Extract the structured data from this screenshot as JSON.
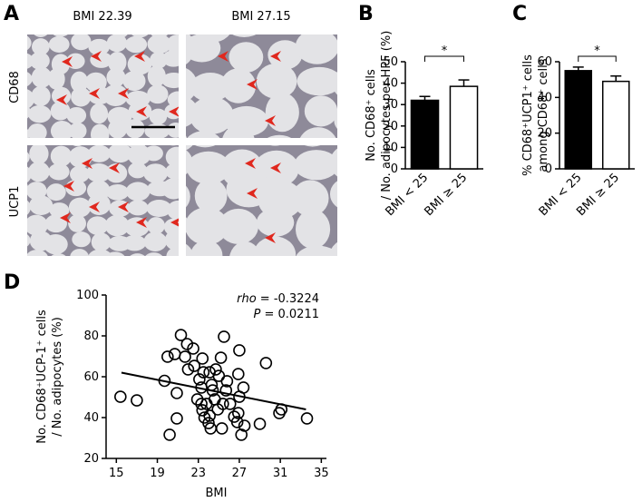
{
  "panel_a": {
    "letter": "A",
    "columns": [
      "BMI 22.39",
      "BMI 27.15"
    ],
    "rows": [
      "CD68",
      "UCP1"
    ]
  },
  "chart_data": [
    {
      "type": "bar",
      "letter": "B",
      "ylabel": [
        "No. CD68⁺ cells",
        "/ No. adipocytes per HPF (%)"
      ],
      "categories": [
        "BMI < 25",
        "BMI ≥ 25"
      ],
      "values": [
        32,
        38.5
      ],
      "errors": [
        1.8,
        3
      ],
      "colors": [
        "#000000",
        "#ffffff"
      ],
      "ylim": [
        0,
        50
      ],
      "yticks": [
        0,
        10,
        20,
        30,
        40,
        50
      ],
      "significance": "*"
    },
    {
      "type": "bar",
      "letter": "C",
      "ylabel": [
        "% CD68⁺UCP1⁺ cells",
        "among CD68⁺ cells"
      ],
      "categories": [
        "BMI < 25",
        "BMI ≥ 25"
      ],
      "values": [
        55,
        49
      ],
      "errors": [
        2,
        3
      ],
      "colors": [
        "#000000",
        "#ffffff"
      ],
      "ylim": [
        0,
        60
      ],
      "yticks": [
        0,
        20,
        40,
        60
      ],
      "significance": "*"
    },
    {
      "type": "scatter",
      "letter": "D",
      "ylabel": [
        "No. CD68⁺UCP-1⁺ cells",
        "/ No. adipocytes (%)"
      ],
      "xlabel": "BMI",
      "annotations": [
        {
          "label": "rho",
          "text": "= -0.3224"
        },
        {
          "label": "P",
          "text": "= 0.0211"
        }
      ],
      "x": [
        15.4,
        17.0,
        19.7,
        20.0,
        20.7,
        20.9,
        20.2,
        20.9,
        21.3,
        21.7,
        22.0,
        22.5,
        22.6,
        21.9,
        23.1,
        23.3,
        22.9,
        23.3,
        23.8,
        23.4,
        23.6,
        24.0,
        24.2,
        23.4,
        23.5,
        24.1,
        24.3,
        24.4,
        24.6,
        24.1,
        24.9,
        25.3,
        25.4,
        25.0,
        25.5,
        25.2,
        26.1,
        26.5,
        26.8,
        26.9,
        27.0,
        27.0,
        26.9,
        27.5,
        27.2,
        29.0,
        29.6,
        30.9,
        31.1,
        33.6,
        27.4,
        25.7,
        24.7,
        25.8
      ],
      "y": [
        50.2,
        48.4,
        58.0,
        69.8,
        71.1,
        52.0,
        31.6,
        39.6,
        80.4,
        69.8,
        63.6,
        73.8,
        65.3,
        76.0,
        58.7,
        54.7,
        48.9,
        46.7,
        46.7,
        43.6,
        40.0,
        37.3,
        34.7,
        68.9,
        62.2,
        62.2,
        56.0,
        53.3,
        48.9,
        40.9,
        44.0,
        34.7,
        46.7,
        60.4,
        79.6,
        69.3,
        46.7,
        40.4,
        37.8,
        42.2,
        50.2,
        72.9,
        61.3,
        36.0,
        31.6,
        36.9,
        66.7,
        42.2,
        44.0,
        39.6,
        54.7,
        53.3,
        63.6,
        57.8
      ],
      "fit": {
        "x": [
          15.5,
          33.5
        ],
        "y": [
          62,
          44
        ]
      },
      "xlim": [
        14,
        35.5
      ],
      "xticks": [
        15,
        19,
        23,
        27,
        31,
        35
      ],
      "ylim": [
        20,
        100
      ],
      "yticks": [
        20,
        40,
        60,
        80,
        100
      ]
    }
  ]
}
